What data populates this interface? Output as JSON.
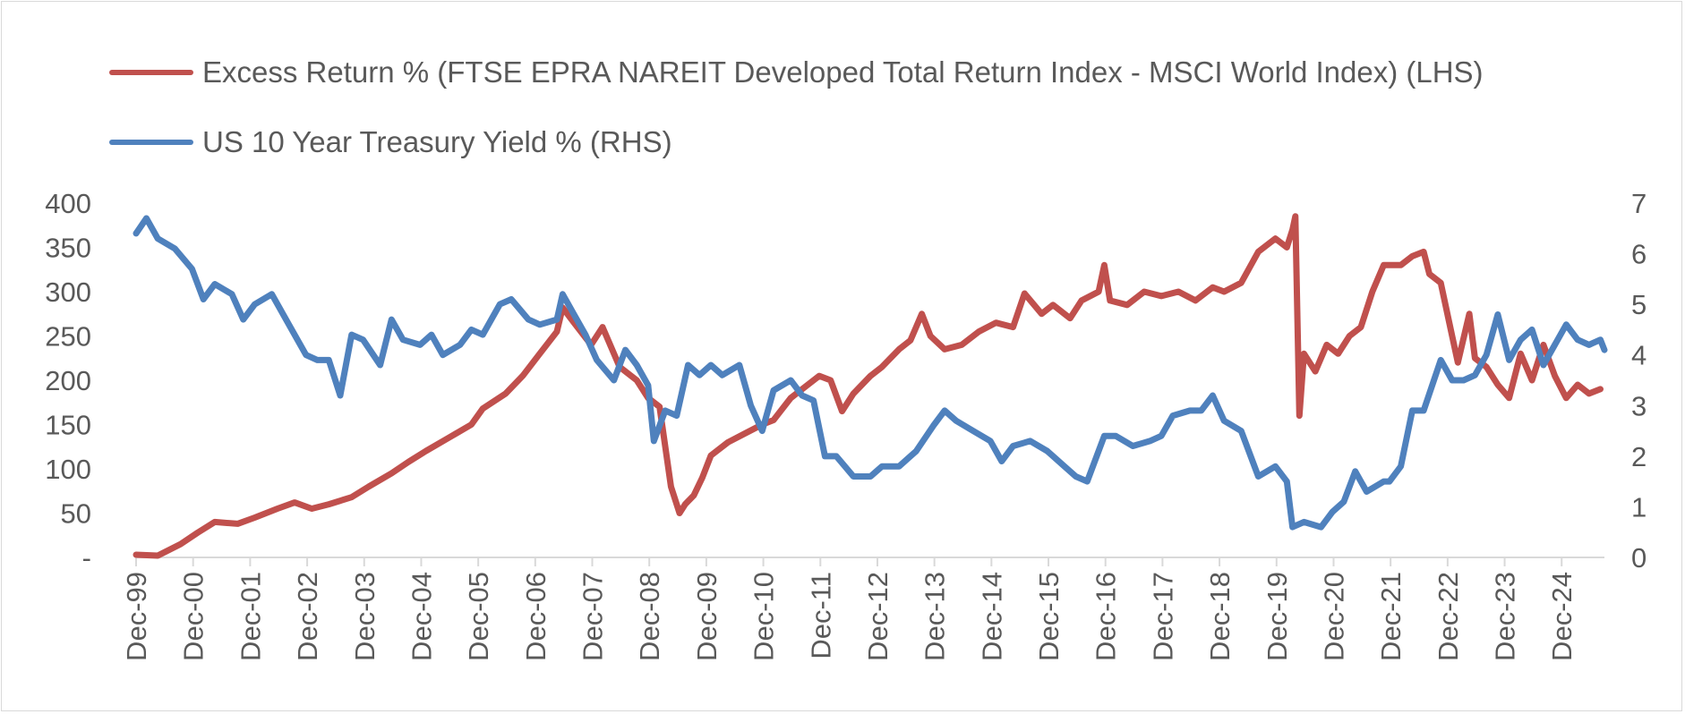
{
  "chart_data": {
    "type": "line",
    "title": "",
    "x_categories": [
      "Dec-99",
      "Dec-00",
      "Dec-01",
      "Dec-02",
      "Dec-03",
      "Dec-04",
      "Dec-05",
      "Dec-06",
      "Dec-07",
      "Dec-08",
      "Dec-09",
      "Dec-10",
      "Dec-11",
      "Dec-12",
      "Dec-13",
      "Dec-14",
      "Dec-15",
      "Dec-16",
      "Dec-17",
      "Dec-18",
      "Dec-19",
      "Dec-20",
      "Dec-21",
      "Dec-22",
      "Dec-23",
      "Dec-24"
    ],
    "x_range": [
      1999.92,
      2025.67
    ],
    "y_left": {
      "ticks": [
        0,
        50,
        100,
        150,
        200,
        250,
        300,
        350,
        400
      ],
      "tick_labels": [
        "-",
        "50",
        "100",
        "150",
        "200",
        "250",
        "300",
        "350",
        "400"
      ],
      "range": [
        0,
        400
      ]
    },
    "y_right": {
      "ticks": [
        0,
        1,
        2,
        3,
        4,
        5,
        6,
        7
      ],
      "tick_labels": [
        "0",
        "1",
        "2",
        "3",
        "4",
        "5",
        "6",
        "7"
      ],
      "range": [
        0,
        7
      ]
    },
    "series": [
      {
        "name": "Excess Return % (FTSE EPRA NAREIT Developed Total Return Index - MSCI World Index) (LHS)",
        "axis": "left",
        "color": "#c0504d",
        "points": [
          [
            1999.92,
            3
          ],
          [
            2000.3,
            2
          ],
          [
            2000.7,
            15
          ],
          [
            2001.0,
            28
          ],
          [
            2001.3,
            40
          ],
          [
            2001.7,
            38
          ],
          [
            2002.0,
            45
          ],
          [
            2002.4,
            55
          ],
          [
            2002.7,
            62
          ],
          [
            2003.0,
            55
          ],
          [
            2003.3,
            60
          ],
          [
            2003.7,
            68
          ],
          [
            2004.0,
            80
          ],
          [
            2004.4,
            95
          ],
          [
            2004.7,
            108
          ],
          [
            2005.0,
            120
          ],
          [
            2005.4,
            135
          ],
          [
            2005.8,
            150
          ],
          [
            2006.0,
            168
          ],
          [
            2006.4,
            185
          ],
          [
            2006.7,
            205
          ],
          [
            2007.0,
            230
          ],
          [
            2007.3,
            255
          ],
          [
            2007.4,
            282
          ],
          [
            2007.6,
            265
          ],
          [
            2007.9,
            240
          ],
          [
            2008.1,
            260
          ],
          [
            2008.4,
            215
          ],
          [
            2008.7,
            200
          ],
          [
            2008.9,
            180
          ],
          [
            2009.1,
            170
          ],
          [
            2009.3,
            80
          ],
          [
            2009.45,
            50
          ],
          [
            2009.55,
            60
          ],
          [
            2009.7,
            70
          ],
          [
            2009.85,
            90
          ],
          [
            2010.0,
            115
          ],
          [
            2010.3,
            130
          ],
          [
            2010.6,
            140
          ],
          [
            2010.9,
            150
          ],
          [
            2011.1,
            155
          ],
          [
            2011.4,
            180
          ],
          [
            2011.7,
            195
          ],
          [
            2011.9,
            205
          ],
          [
            2012.1,
            200
          ],
          [
            2012.3,
            165
          ],
          [
            2012.5,
            185
          ],
          [
            2012.8,
            205
          ],
          [
            2013.0,
            215
          ],
          [
            2013.3,
            235
          ],
          [
            2013.5,
            245
          ],
          [
            2013.7,
            275
          ],
          [
            2013.85,
            250
          ],
          [
            2014.1,
            235
          ],
          [
            2014.4,
            240
          ],
          [
            2014.7,
            255
          ],
          [
            2015.0,
            265
          ],
          [
            2015.3,
            260
          ],
          [
            2015.5,
            298
          ],
          [
            2015.8,
            275
          ],
          [
            2016.0,
            285
          ],
          [
            2016.3,
            270
          ],
          [
            2016.5,
            290
          ],
          [
            2016.8,
            300
          ],
          [
            2016.9,
            330
          ],
          [
            2017.0,
            290
          ],
          [
            2017.3,
            285
          ],
          [
            2017.6,
            300
          ],
          [
            2017.9,
            295
          ],
          [
            2018.2,
            300
          ],
          [
            2018.5,
            290
          ],
          [
            2018.8,
            305
          ],
          [
            2019.0,
            300
          ],
          [
            2019.3,
            310
          ],
          [
            2019.6,
            345
          ],
          [
            2019.9,
            360
          ],
          [
            2020.1,
            350
          ],
          [
            2020.2,
            370
          ],
          [
            2020.25,
            385
          ],
          [
            2020.32,
            160
          ],
          [
            2020.4,
            230
          ],
          [
            2020.6,
            210
          ],
          [
            2020.8,
            240
          ],
          [
            2021.0,
            230
          ],
          [
            2021.2,
            250
          ],
          [
            2021.4,
            260
          ],
          [
            2021.6,
            300
          ],
          [
            2021.8,
            330
          ],
          [
            2022.1,
            330
          ],
          [
            2022.3,
            340
          ],
          [
            2022.5,
            345
          ],
          [
            2022.6,
            320
          ],
          [
            2022.8,
            310
          ],
          [
            2023.0,
            250
          ],
          [
            2023.1,
            220
          ],
          [
            2023.3,
            275
          ],
          [
            2023.4,
            225
          ],
          [
            2023.6,
            215
          ],
          [
            2023.8,
            195
          ],
          [
            2024.0,
            180
          ],
          [
            2024.2,
            230
          ],
          [
            2024.4,
            200
          ],
          [
            2024.6,
            240
          ],
          [
            2024.8,
            205
          ],
          [
            2025.0,
            180
          ],
          [
            2025.2,
            195
          ],
          [
            2025.4,
            185
          ],
          [
            2025.6,
            190
          ]
        ]
      },
      {
        "name": "US 10 Year Treasury Yield % (RHS)",
        "axis": "right",
        "color": "#4f81bd",
        "points": [
          [
            1999.92,
            6.4
          ],
          [
            2000.1,
            6.7
          ],
          [
            2000.3,
            6.3
          ],
          [
            2000.6,
            6.1
          ],
          [
            2000.9,
            5.7
          ],
          [
            2001.1,
            5.1
          ],
          [
            2001.3,
            5.4
          ],
          [
            2001.6,
            5.2
          ],
          [
            2001.8,
            4.7
          ],
          [
            2002.0,
            5.0
          ],
          [
            2002.3,
            5.2
          ],
          [
            2002.6,
            4.6
          ],
          [
            2002.9,
            4.0
          ],
          [
            2003.1,
            3.9
          ],
          [
            2003.3,
            3.9
          ],
          [
            2003.5,
            3.2
          ],
          [
            2003.7,
            4.4
          ],
          [
            2003.9,
            4.3
          ],
          [
            2004.2,
            3.8
          ],
          [
            2004.4,
            4.7
          ],
          [
            2004.6,
            4.3
          ],
          [
            2004.9,
            4.2
          ],
          [
            2005.1,
            4.4
          ],
          [
            2005.3,
            4.0
          ],
          [
            2005.6,
            4.2
          ],
          [
            2005.8,
            4.5
          ],
          [
            2006.0,
            4.4
          ],
          [
            2006.3,
            5.0
          ],
          [
            2006.5,
            5.1
          ],
          [
            2006.8,
            4.7
          ],
          [
            2007.0,
            4.6
          ],
          [
            2007.3,
            4.7
          ],
          [
            2007.4,
            5.2
          ],
          [
            2007.6,
            4.8
          ],
          [
            2007.8,
            4.4
          ],
          [
            2008.0,
            3.9
          ],
          [
            2008.3,
            3.5
          ],
          [
            2008.5,
            4.1
          ],
          [
            2008.7,
            3.8
          ],
          [
            2008.9,
            3.4
          ],
          [
            2009.0,
            2.3
          ],
          [
            2009.2,
            2.9
          ],
          [
            2009.4,
            2.8
          ],
          [
            2009.6,
            3.8
          ],
          [
            2009.8,
            3.6
          ],
          [
            2010.0,
            3.8
          ],
          [
            2010.2,
            3.6
          ],
          [
            2010.5,
            3.8
          ],
          [
            2010.7,
            3.0
          ],
          [
            2010.9,
            2.5
          ],
          [
            2011.1,
            3.3
          ],
          [
            2011.4,
            3.5
          ],
          [
            2011.6,
            3.2
          ],
          [
            2011.8,
            3.1
          ],
          [
            2012.0,
            2.0
          ],
          [
            2012.2,
            2.0
          ],
          [
            2012.5,
            1.6
          ],
          [
            2012.8,
            1.6
          ],
          [
            2013.0,
            1.8
          ],
          [
            2013.3,
            1.8
          ],
          [
            2013.6,
            2.1
          ],
          [
            2013.9,
            2.6
          ],
          [
            2014.1,
            2.9
          ],
          [
            2014.3,
            2.7
          ],
          [
            2014.6,
            2.5
          ],
          [
            2014.9,
            2.3
          ],
          [
            2015.1,
            1.9
          ],
          [
            2015.3,
            2.2
          ],
          [
            2015.6,
            2.3
          ],
          [
            2015.9,
            2.1
          ],
          [
            2016.2,
            1.8
          ],
          [
            2016.4,
            1.6
          ],
          [
            2016.6,
            1.5
          ],
          [
            2016.9,
            2.4
          ],
          [
            2017.1,
            2.4
          ],
          [
            2017.4,
            2.2
          ],
          [
            2017.7,
            2.3
          ],
          [
            2017.9,
            2.4
          ],
          [
            2018.1,
            2.8
          ],
          [
            2018.4,
            2.9
          ],
          [
            2018.6,
            2.9
          ],
          [
            2018.8,
            3.2
          ],
          [
            2019.0,
            2.7
          ],
          [
            2019.3,
            2.5
          ],
          [
            2019.6,
            1.6
          ],
          [
            2019.9,
            1.8
          ],
          [
            2020.1,
            1.5
          ],
          [
            2020.2,
            0.6
          ],
          [
            2020.4,
            0.7
          ],
          [
            2020.7,
            0.6
          ],
          [
            2020.9,
            0.9
          ],
          [
            2021.1,
            1.1
          ],
          [
            2021.3,
            1.7
          ],
          [
            2021.5,
            1.3
          ],
          [
            2021.8,
            1.5
          ],
          [
            2021.9,
            1.5
          ],
          [
            2022.1,
            1.8
          ],
          [
            2022.3,
            2.9
          ],
          [
            2022.5,
            2.9
          ],
          [
            2022.8,
            3.9
          ],
          [
            2023.0,
            3.5
          ],
          [
            2023.2,
            3.5
          ],
          [
            2023.4,
            3.6
          ],
          [
            2023.6,
            4.0
          ],
          [
            2023.8,
            4.8
          ],
          [
            2024.0,
            3.9
          ],
          [
            2024.2,
            4.3
          ],
          [
            2024.4,
            4.5
          ],
          [
            2024.6,
            3.8
          ],
          [
            2024.8,
            4.2
          ],
          [
            2025.0,
            4.6
          ],
          [
            2025.2,
            4.3
          ],
          [
            2025.4,
            4.2
          ],
          [
            2025.6,
            4.3
          ],
          [
            2025.67,
            4.1
          ]
        ]
      }
    ]
  },
  "legend": {
    "items": [
      {
        "label": "Excess Return % (FTSE EPRA NAREIT Developed Total Return Index - MSCI World Index) (LHS)",
        "color": "#c0504d"
      },
      {
        "label": "US 10 Year Treasury Yield % (RHS)",
        "color": "#4f81bd"
      }
    ]
  }
}
